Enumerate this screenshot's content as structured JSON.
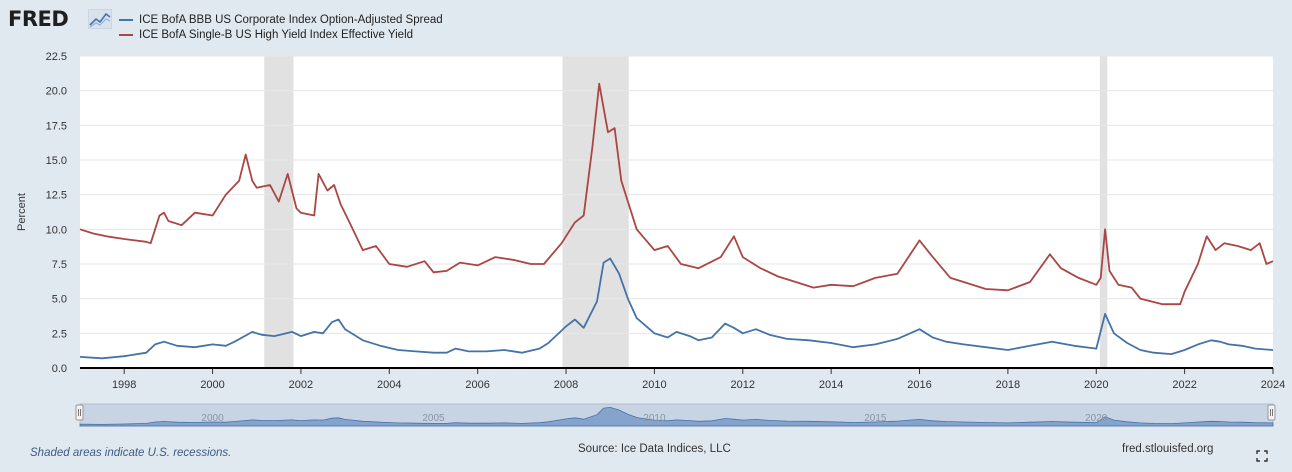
{
  "brand": {
    "logo_text": "FRED",
    "site": "fred.stlouisfed.org"
  },
  "footer": {
    "note": "Shaded areas indicate U.S. recessions.",
    "source": "Source: Ice Data Indices, LLC"
  },
  "colors": {
    "blue": "#4572a7",
    "red": "#aa4643",
    "recession": "#e1e1e1",
    "plot_bg": "#ffffff",
    "page_bg": "#e1e9f0"
  },
  "icons": {
    "logo_mark": "fred-graph-icon",
    "fullscreen": "fullscreen-icon"
  },
  "chart_data": {
    "type": "line",
    "ylabel": "Percent",
    "xlabel": "",
    "ylim": [
      0,
      22.5
    ],
    "xlim": [
      1997.0,
      2024.0
    ],
    "grid": true,
    "legend_position": "top-left",
    "yticks": [
      "0.0",
      "2.5",
      "5.0",
      "7.5",
      "10.0",
      "12.5",
      "15.0",
      "17.5",
      "20.0",
      "22.5"
    ],
    "xticks": [
      "1998",
      "2000",
      "2002",
      "2004",
      "2006",
      "2008",
      "2010",
      "2012",
      "2014",
      "2016",
      "2018",
      "2020",
      "2022",
      "2024"
    ],
    "recessions": [
      [
        2001.17,
        2001.83
      ],
      [
        2007.92,
        2009.42
      ],
      [
        2020.08,
        2020.25
      ]
    ],
    "navigator_labels": [
      "2000",
      "2005",
      "2010",
      "2015",
      "2020"
    ],
    "series": [
      {
        "name": "ICE BofA BBB US Corporate Index Option-Adjusted Spread",
        "color": "#4572a7",
        "x": [
          1997.0,
          1997.5,
          1998.0,
          1998.5,
          1998.7,
          1998.9,
          1999.2,
          1999.6,
          2000.0,
          2000.3,
          2000.5,
          2000.9,
          2001.1,
          2001.4,
          2001.8,
          2002.0,
          2002.3,
          2002.5,
          2002.7,
          2002.85,
          2003.0,
          2003.4,
          2003.8,
          2004.2,
          2004.6,
          2005.0,
          2005.3,
          2005.5,
          2005.8,
          2006.2,
          2006.6,
          2007.0,
          2007.4,
          2007.6,
          2008.0,
          2008.2,
          2008.4,
          2008.7,
          2008.85,
          2009.0,
          2009.2,
          2009.4,
          2009.6,
          2010.0,
          2010.3,
          2010.5,
          2010.8,
          2011.0,
          2011.3,
          2011.6,
          2011.8,
          2012.0,
          2012.3,
          2012.6,
          2013.0,
          2013.5,
          2014.0,
          2014.5,
          2015.0,
          2015.5,
          2016.0,
          2016.3,
          2016.6,
          2017.0,
          2017.5,
          2018.0,
          2018.5,
          2019.0,
          2019.5,
          2020.0,
          2020.2,
          2020.4,
          2020.7,
          2021.0,
          2021.3,
          2021.7,
          2022.0,
          2022.3,
          2022.6,
          2022.8,
          2023.0,
          2023.3,
          2023.6,
          2024.0
        ],
        "values": [
          0.8,
          0.7,
          0.85,
          1.1,
          1.7,
          1.9,
          1.6,
          1.5,
          1.7,
          1.6,
          1.9,
          2.6,
          2.4,
          2.3,
          2.6,
          2.3,
          2.6,
          2.5,
          3.3,
          3.5,
          2.8,
          2.0,
          1.6,
          1.3,
          1.2,
          1.1,
          1.1,
          1.4,
          1.2,
          1.2,
          1.3,
          1.1,
          1.4,
          1.8,
          3.0,
          3.5,
          2.9,
          4.8,
          7.6,
          7.9,
          6.8,
          5.0,
          3.6,
          2.5,
          2.2,
          2.6,
          2.3,
          2.0,
          2.2,
          3.2,
          2.9,
          2.5,
          2.8,
          2.4,
          2.1,
          2.0,
          1.8,
          1.5,
          1.7,
          2.1,
          2.8,
          2.2,
          1.9,
          1.7,
          1.5,
          1.3,
          1.6,
          1.9,
          1.6,
          1.4,
          3.9,
          2.5,
          1.8,
          1.3,
          1.1,
          1.0,
          1.3,
          1.7,
          2.0,
          1.9,
          1.7,
          1.6,
          1.4,
          1.3
        ]
      },
      {
        "name": "ICE BofA Single-B US High Yield Index Effective Yield",
        "color": "#aa4643",
        "x": [
          1997.0,
          1997.3,
          1997.6,
          1998.0,
          1998.5,
          1998.6,
          1998.8,
          1998.9,
          1999.0,
          1999.3,
          1999.6,
          2000.0,
          2000.3,
          2000.6,
          2000.75,
          2000.9,
          2001.0,
          2001.3,
          2001.5,
          2001.7,
          2001.9,
          2002.0,
          2002.3,
          2002.4,
          2002.6,
          2002.75,
          2002.9,
          2003.1,
          2003.4,
          2003.7,
          2004.0,
          2004.4,
          2004.8,
          2005.0,
          2005.3,
          2005.6,
          2006.0,
          2006.4,
          2006.8,
          2007.2,
          2007.5,
          2007.9,
          2008.0,
          2008.2,
          2008.4,
          2008.6,
          2008.75,
          2008.95,
          2009.1,
          2009.25,
          2009.4,
          2009.6,
          2010.0,
          2010.3,
          2010.6,
          2011.0,
          2011.5,
          2011.8,
          2012.0,
          2012.4,
          2012.8,
          2013.2,
          2013.6,
          2014.0,
          2014.5,
          2015.0,
          2015.5,
          2016.0,
          2016.3,
          2016.7,
          2017.0,
          2017.5,
          2018.0,
          2018.5,
          2018.95,
          2019.2,
          2019.6,
          2020.0,
          2020.1,
          2020.2,
          2020.3,
          2020.5,
          2020.8,
          2021.0,
          2021.5,
          2021.9,
          2022.0,
          2022.3,
          2022.5,
          2022.7,
          2022.9,
          2023.2,
          2023.5,
          2023.7,
          2023.85,
          2024.0
        ],
        "values": [
          10.0,
          9.7,
          9.5,
          9.3,
          9.1,
          9.0,
          11.0,
          11.2,
          10.6,
          10.3,
          11.2,
          11.0,
          12.5,
          13.5,
          15.4,
          13.5,
          13.0,
          13.2,
          12.0,
          14.0,
          11.5,
          11.2,
          11.0,
          14.0,
          12.8,
          13.2,
          11.8,
          10.5,
          8.5,
          8.8,
          7.5,
          7.3,
          7.7,
          6.9,
          7.0,
          7.6,
          7.4,
          8.0,
          7.8,
          7.5,
          7.5,
          9.0,
          9.5,
          10.5,
          11.0,
          16.0,
          20.5,
          17.0,
          17.3,
          13.5,
          12.0,
          10.0,
          8.5,
          8.8,
          7.5,
          7.2,
          8.0,
          9.5,
          8.0,
          7.2,
          6.6,
          6.2,
          5.8,
          6.0,
          5.9,
          6.5,
          6.8,
          9.2,
          8.0,
          6.5,
          6.2,
          5.7,
          5.6,
          6.2,
          8.2,
          7.2,
          6.5,
          6.0,
          6.5,
          10.0,
          7.0,
          6.0,
          5.8,
          5.0,
          4.6,
          4.6,
          5.5,
          7.5,
          9.5,
          8.5,
          9.0,
          8.8,
          8.5,
          9.0,
          7.5,
          7.7
        ]
      }
    ]
  }
}
